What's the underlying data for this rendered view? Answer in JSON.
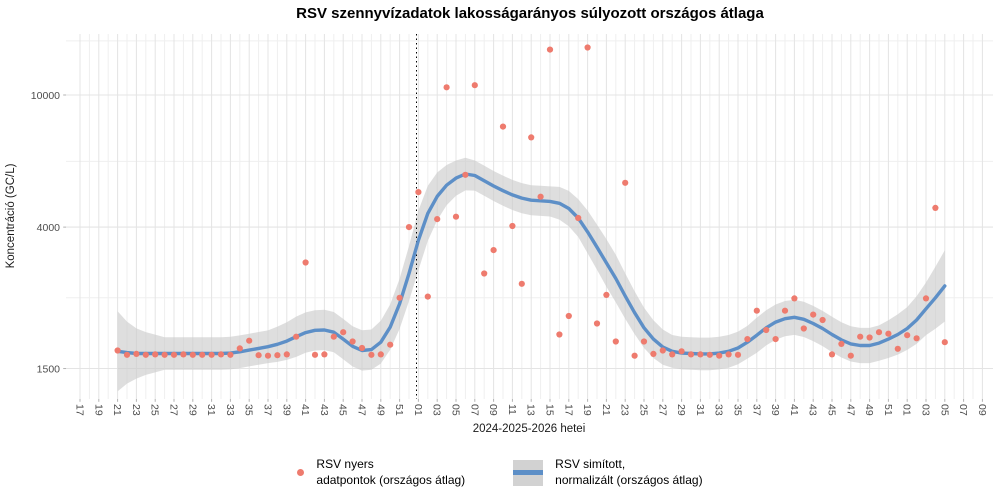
{
  "title": "RSV szennyvízadatok lakosságarányos súlyozott országos átlaga",
  "y_axis": {
    "label": "Koncentráció (GC/L)"
  },
  "x_axis": {
    "label": "2024-2025-2026 hetei"
  },
  "legend": {
    "raw": {
      "label": "RSV nyers\n adatpontok (országos átlag)"
    },
    "smoothed": {
      "label": "RSV simított,\n normalizált (országos átlag)"
    }
  },
  "colors": {
    "raw_point": "#ee7b6e",
    "smoothed_line": "#5d8fc7",
    "ribbon": "#c9c9c9",
    "grid_major": "#e4e4e4",
    "grid_minor": "#efefef",
    "axis_text": "#4d4d4d",
    "tick_mark": "#b3b3b3",
    "vline": "#000000"
  },
  "chart_data": {
    "type": "line+scatter+ribbon",
    "title": "RSV szennyvízadatok lakosságarányos súlyozott országos átlaga",
    "xlabel": "2024-2025-2026 hetei",
    "ylabel": "Koncentráció (GC/L)",
    "y_scale": "log10",
    "grid": true,
    "legend_position": "bottom",
    "y_major_ticks": [
      10000,
      4000,
      1500
    ],
    "y_minor_gridlines": [
      14550,
      6310,
      2450
    ],
    "ylim": [
      1220,
      15300
    ],
    "x_axis_start_week": "2024-W17",
    "x_tick_step_weeks": 2,
    "x_tick_labels": [
      "17",
      "19",
      "21",
      "23",
      "25",
      "27",
      "29",
      "31",
      "33",
      "35",
      "37",
      "39",
      "41",
      "43",
      "45",
      "47",
      "49",
      "51",
      "01",
      "03",
      "05",
      "07",
      "09",
      "11",
      "13",
      "15",
      "17",
      "19",
      "21",
      "23",
      "25",
      "27",
      "29",
      "31",
      "33",
      "35",
      "37",
      "39",
      "41",
      "43",
      "45",
      "47",
      "49",
      "51",
      "01",
      "03",
      "05",
      "07",
      "09"
    ],
    "series_start_week": "2024-W21",
    "series_start_offset_weeks": 4,
    "year_boundary_vline_offset_weeks": 35.8,
    "raw_points": [
      1700,
      1650,
      1660,
      1650,
      1655,
      1650,
      1650,
      1655,
      1650,
      1650,
      1650,
      1655,
      1650,
      1725,
      1820,
      1645,
      1640,
      1645,
      1655,
      1870,
      3130,
      1650,
      1655,
      1870,
      1930,
      1810,
      1730,
      1650,
      1655,
      1770,
      2450,
      4000,
      5100,
      2470,
      4230,
      10550,
      4300,
      5750,
      10700,
      2900,
      3410,
      8030,
      4030,
      2700,
      7450,
      4940,
      13700,
      1900,
      2160,
      4260,
      13900,
      2050,
      2500,
      1810,
      5440,
      1640,
      1810,
      1660,
      1700,
      1655,
      1690,
      1655,
      1655,
      1650,
      1640,
      1655,
      1650,
      1840,
      2240,
      1960,
      1840,
      2240,
      2440,
      1980,
      2180,
      2100,
      1655,
      1780,
      1640,
      1870,
      1860,
      1930,
      1910,
      1720,
      1890,
      1850,
      2440,
      4570,
      1800
    ],
    "smoothed": [
      1690,
      1675,
      1665,
      1665,
      1665,
      1665,
      1665,
      1665,
      1665,
      1665,
      1665,
      1665,
      1670,
      1685,
      1705,
      1725,
      1745,
      1775,
      1815,
      1870,
      1925,
      1955,
      1960,
      1930,
      1840,
      1750,
      1700,
      1710,
      1800,
      2000,
      2350,
      2900,
      3650,
      4400,
      4950,
      5350,
      5620,
      5780,
      5720,
      5520,
      5320,
      5150,
      5000,
      4890,
      4820,
      4800,
      4780,
      4720,
      4550,
      4260,
      3870,
      3480,
      3120,
      2800,
      2480,
      2210,
      1990,
      1840,
      1740,
      1690,
      1670,
      1665,
      1660,
      1660,
      1670,
      1690,
      1730,
      1800,
      1890,
      1990,
      2070,
      2120,
      2140,
      2110,
      2050,
      1980,
      1900,
      1830,
      1780,
      1760,
      1760,
      1790,
      1840,
      1900,
      1980,
      2100,
      2270,
      2450,
      2660
    ],
    "band_factor": [
      1.32,
      1.24,
      1.19,
      1.16,
      1.14,
      1.12,
      1.12,
      1.12,
      1.12,
      1.12,
      1.12,
      1.12,
      1.12,
      1.12,
      1.12,
      1.12,
      1.12,
      1.13,
      1.14,
      1.15,
      1.15,
      1.15,
      1.15,
      1.15,
      1.15,
      1.15,
      1.15,
      1.15,
      1.16,
      1.17,
      1.19,
      1.21,
      1.23,
      1.21,
      1.18,
      1.15,
      1.13,
      1.12,
      1.11,
      1.11,
      1.11,
      1.11,
      1.11,
      1.11,
      1.11,
      1.11,
      1.11,
      1.12,
      1.13,
      1.14,
      1.16,
      1.17,
      1.18,
      1.18,
      1.17,
      1.16,
      1.15,
      1.14,
      1.13,
      1.12,
      1.12,
      1.12,
      1.12,
      1.12,
      1.12,
      1.12,
      1.12,
      1.12,
      1.13,
      1.13,
      1.13,
      1.13,
      1.13,
      1.13,
      1.13,
      1.13,
      1.13,
      1.13,
      1.13,
      1.13,
      1.13,
      1.13,
      1.14,
      1.15,
      1.16,
      1.18,
      1.2,
      1.24,
      1.28
    ]
  }
}
